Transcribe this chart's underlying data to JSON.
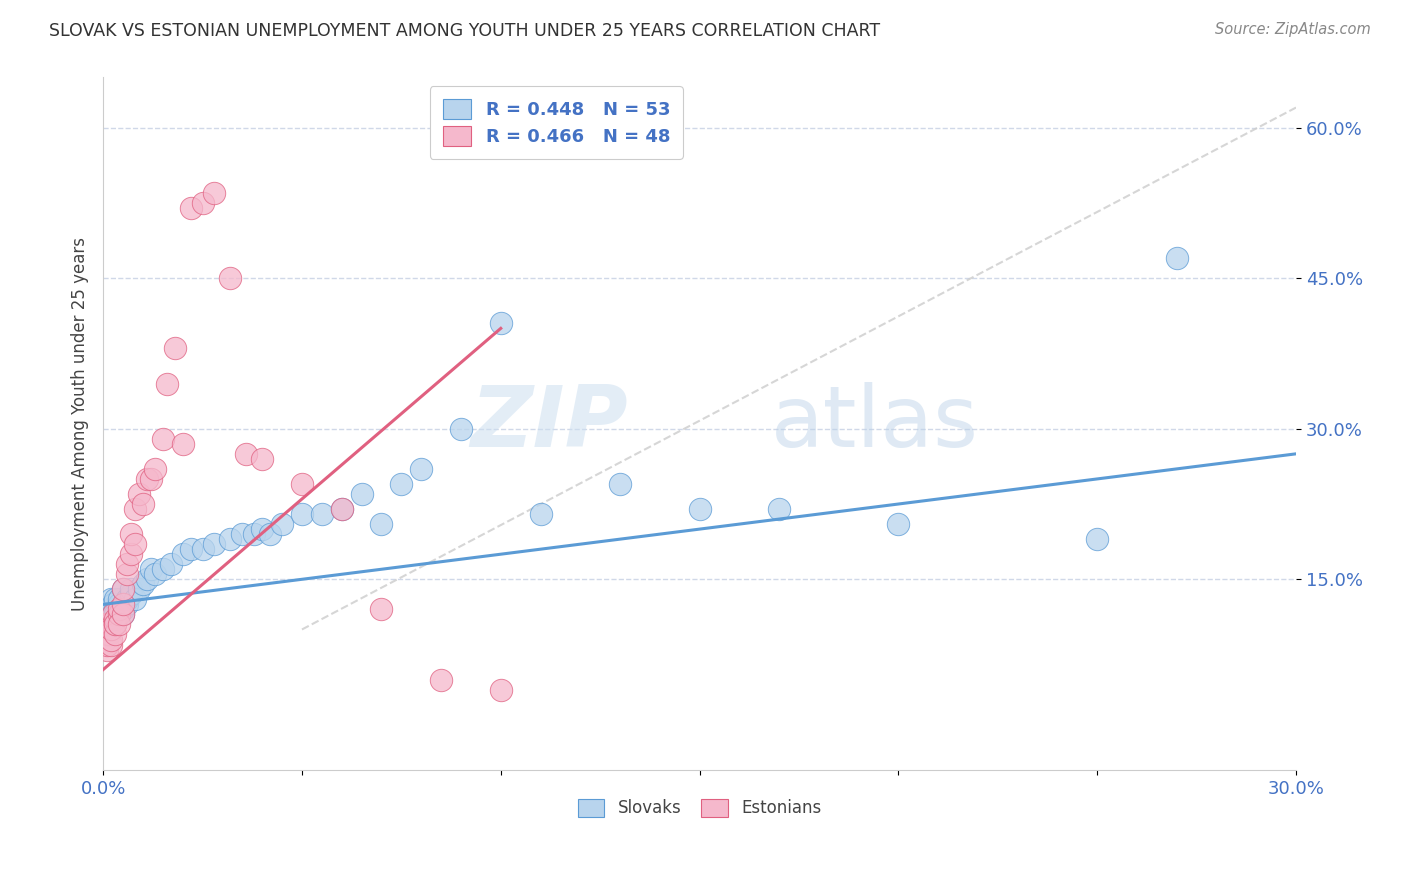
{
  "title": "SLOVAK VS ESTONIAN UNEMPLOYMENT AMONG YOUTH UNDER 25 YEARS CORRELATION CHART",
  "source": "Source: ZipAtlas.com",
  "ylabel": "Unemployment Among Youth under 25 years",
  "xlim": [
    0.0,
    0.3
  ],
  "ylim": [
    -0.04,
    0.65
  ],
  "xticks": [
    0.0,
    0.05,
    0.1,
    0.15,
    0.2,
    0.25,
    0.3
  ],
  "xtick_labels": [
    "0.0%",
    "",
    "",
    "",
    "",
    "",
    "30.0%"
  ],
  "yticks": [
    0.15,
    0.3,
    0.45,
    0.6
  ],
  "ytick_labels": [
    "15.0%",
    "30.0%",
    "45.0%",
    "60.0%"
  ],
  "legend_r_slovak": "R = 0.448",
  "legend_n_slovak": "N = 53",
  "legend_r_estonian": "R = 0.466",
  "legend_n_estonian": "N = 48",
  "color_slovak_fill": "#b8d4ed",
  "color_estonian_fill": "#f5b8cc",
  "color_line_slovak": "#5b9bd5",
  "color_line_estonian": "#e06080",
  "color_ref_line": "#cccccc",
  "color_title": "#333333",
  "color_legend_text": "#4472c4",
  "watermark_zip": "ZIP",
  "watermark_atlas": "atlas",
  "slovak_x": [
    0.0005,
    0.001,
    0.001,
    0.0015,
    0.002,
    0.002,
    0.0025,
    0.003,
    0.003,
    0.003,
    0.004,
    0.004,
    0.005,
    0.005,
    0.005,
    0.006,
    0.006,
    0.007,
    0.007,
    0.008,
    0.009,
    0.01,
    0.011,
    0.012,
    0.013,
    0.015,
    0.017,
    0.02,
    0.022,
    0.025,
    0.028,
    0.032,
    0.035,
    0.038,
    0.04,
    0.042,
    0.045,
    0.05,
    0.055,
    0.06,
    0.065,
    0.07,
    0.075,
    0.08,
    0.09,
    0.1,
    0.11,
    0.13,
    0.15,
    0.17,
    0.2,
    0.25,
    0.27
  ],
  "slovak_y": [
    0.115,
    0.12,
    0.11,
    0.115,
    0.13,
    0.12,
    0.125,
    0.12,
    0.115,
    0.13,
    0.125,
    0.13,
    0.115,
    0.12,
    0.14,
    0.125,
    0.13,
    0.135,
    0.14,
    0.13,
    0.14,
    0.145,
    0.15,
    0.16,
    0.155,
    0.16,
    0.165,
    0.175,
    0.18,
    0.18,
    0.185,
    0.19,
    0.195,
    0.195,
    0.2,
    0.195,
    0.205,
    0.215,
    0.215,
    0.22,
    0.235,
    0.205,
    0.245,
    0.26,
    0.3,
    0.405,
    0.215,
    0.245,
    0.22,
    0.22,
    0.205,
    0.19,
    0.47
  ],
  "estonian_x": [
    0.0003,
    0.0005,
    0.0005,
    0.001,
    0.001,
    0.001,
    0.0015,
    0.0015,
    0.002,
    0.002,
    0.002,
    0.0025,
    0.003,
    0.003,
    0.003,
    0.003,
    0.004,
    0.004,
    0.004,
    0.005,
    0.005,
    0.005,
    0.006,
    0.006,
    0.007,
    0.007,
    0.008,
    0.008,
    0.009,
    0.01,
    0.011,
    0.012,
    0.013,
    0.015,
    0.016,
    0.018,
    0.02,
    0.022,
    0.025,
    0.028,
    0.032,
    0.036,
    0.04,
    0.05,
    0.06,
    0.07,
    0.085,
    0.1
  ],
  "estonian_y": [
    0.105,
    0.09,
    0.1,
    0.08,
    0.085,
    0.095,
    0.095,
    0.105,
    0.085,
    0.09,
    0.1,
    0.115,
    0.105,
    0.11,
    0.095,
    0.105,
    0.115,
    0.12,
    0.105,
    0.115,
    0.125,
    0.14,
    0.155,
    0.165,
    0.175,
    0.195,
    0.185,
    0.22,
    0.235,
    0.225,
    0.25,
    0.25,
    0.26,
    0.29,
    0.345,
    0.38,
    0.285,
    0.52,
    0.525,
    0.535,
    0.45,
    0.275,
    0.27,
    0.245,
    0.22,
    0.12,
    0.05,
    0.04
  ],
  "trend_slovak_x0": 0.0,
  "trend_slovak_x1": 0.3,
  "trend_slovak_y0": 0.125,
  "trend_slovak_y1": 0.275,
  "trend_estonian_x0": 0.0,
  "trend_estonian_x1": 0.1,
  "trend_estonian_y0": 0.06,
  "trend_estonian_y1": 0.4,
  "ref_line_x": [
    0.05,
    0.3
  ],
  "ref_line_y": [
    0.1,
    0.62
  ]
}
